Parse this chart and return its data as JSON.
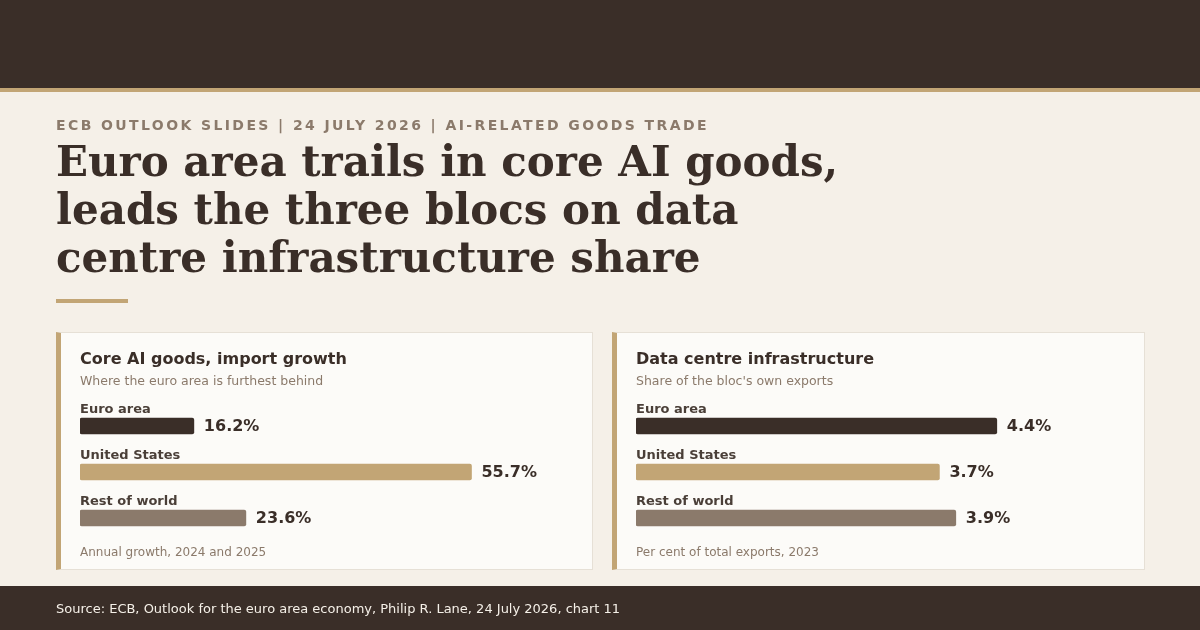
{
  "chart_data": [
    {
      "type": "bar",
      "orientation": "horizontal",
      "title": "Core AI goods, import growth",
      "subtitle": "Where the euro area is furthest behind",
      "categories": [
        "Euro area",
        "United States",
        "Rest of world"
      ],
      "values": [
        16.2,
        55.7,
        23.6
      ],
      "colors": [
        "#3a2e28",
        "#c2a575",
        "#8b7a6b"
      ],
      "value_labels": [
        "16.2%",
        "55.7%",
        "23.6%"
      ],
      "tick_labels": false,
      "legend": false,
      "annotations": [
        "ECB OUTLOOK SLIDES | 24 JULY 2026 | AI-RELATED GOODS TRADE",
        "Euro area trails in core AI goods, leads the three blocs on data centre infrastructure share",
        "Annual growth, 2024 and 2025"
      ]
    },
    {
      "type": "bar",
      "orientation": "horizontal",
      "title": "Data centre infrastructure",
      "subtitle": "Share of the bloc's own exports",
      "categories": [
        "Euro area",
        "United States",
        "Rest of world"
      ],
      "values": [
        4.4,
        3.7,
        3.9
      ],
      "colors": [
        "#3a2e28",
        "#c2a575",
        "#8b7a6b"
      ],
      "value_labels": [
        "4.4%",
        "3.7%",
        "3.9%"
      ],
      "tick_labels": false,
      "legend": false,
      "annotations": [
        "Per cent of total exports, 2023",
        "Source: ECB, Outlook for the euro area economy, Philip R. Lane, 24 July 2026, chart 11"
      ]
    }
  ]
}
